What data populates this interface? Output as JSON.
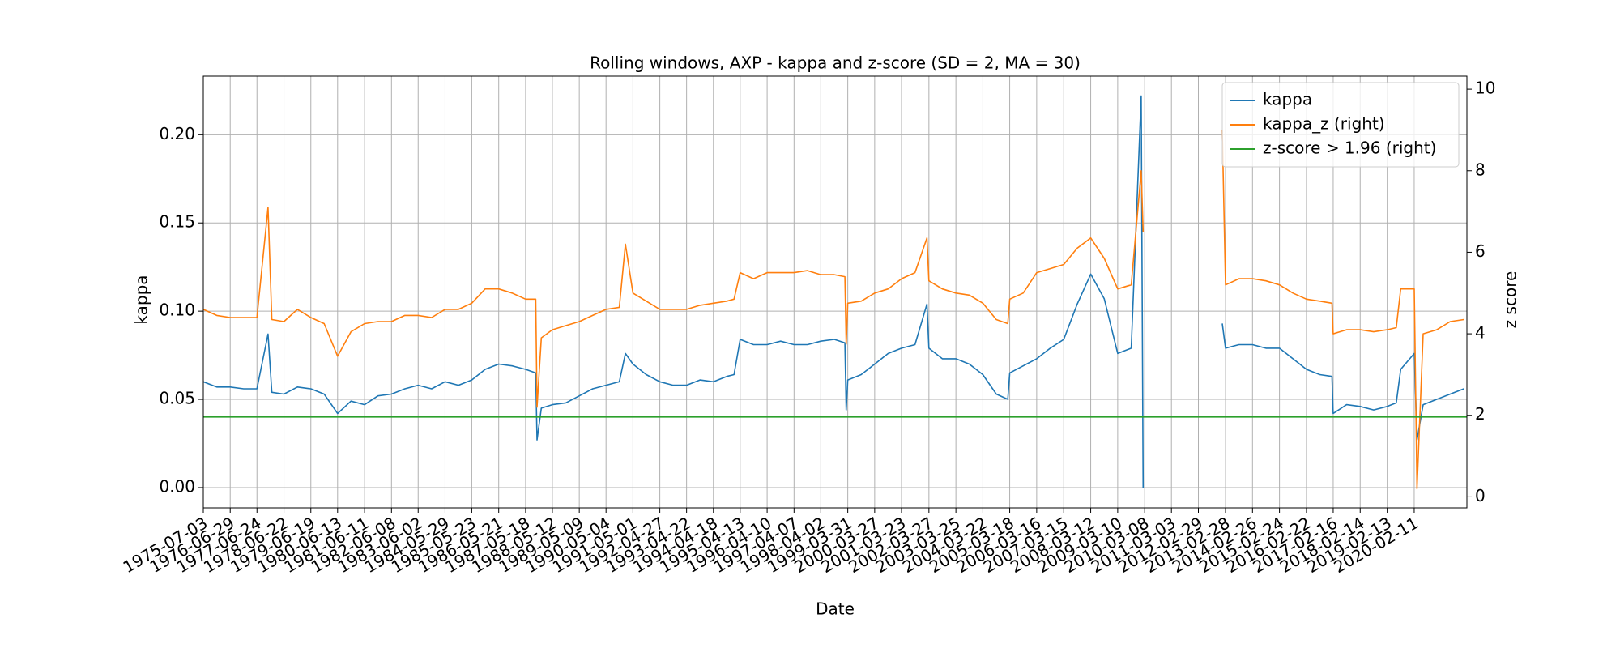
{
  "chart_data": {
    "type": "line",
    "title": "Rolling windows, AXP - kappa and z-score (SD = 2, MA = 30)",
    "xlabel": "Date",
    "ylabel": "kappa",
    "y2label": "z score",
    "grid": true,
    "legend": "upper right",
    "x": [
      "1975-07-03",
      "1975-12-31",
      "1976-06-29",
      "1976-12-27",
      "1977-06-24",
      "1977-11-20",
      "1978-01-10",
      "1978-06-22",
      "1978-12-20",
      "1979-06-19",
      "1979-12-15",
      "1980-06-13",
      "1980-12-10",
      "1981-06-11",
      "1981-12-08",
      "1982-06-08",
      "1982-12-05",
      "1983-06-02",
      "1983-11-30",
      "1984-05-29",
      "1984-11-25",
      "1985-05-23",
      "1985-11-20",
      "1986-05-21",
      "1986-11-18",
      "1987-05-18",
      "1987-10-01",
      "1987-10-19",
      "1987-12-15",
      "1988-05-12",
      "1988-11-08",
      "1989-05-09",
      "1989-11-05",
      "1990-05-04",
      "1990-10-30",
      "1991-01-20",
      "1991-05-01",
      "1991-10-28",
      "1992-04-27",
      "1992-10-24",
      "1993-04-22",
      "1993-10-20",
      "1994-04-18",
      "1994-10-15",
      "1995-01-20",
      "1995-04-13",
      "1995-10-10",
      "1996-04-10",
      "1996-10-08",
      "1997-04-07",
      "1997-10-05",
      "1998-04-02",
      "1998-10-01",
      "1999-02-20",
      "1999-03-10",
      "1999-03-31",
      "1999-09-28",
      "2000-03-27",
      "2000-09-24",
      "2001-03-23",
      "2001-09-20",
      "2002-03-01",
      "2002-03-27",
      "2002-09-24",
      "2003-03-25",
      "2003-09-22",
      "2004-03-22",
      "2004-09-19",
      "2005-02-20",
      "2005-03-18",
      "2005-09-15",
      "2006-03-16",
      "2006-09-14",
      "2007-03-15",
      "2007-09-12",
      "2008-03-12",
      "2008-09-10",
      "2009-03-10",
      "2009-09-08",
      "2010-01-20",
      "2010-02-15",
      "2011-09-01",
      "2013-01-15",
      "2013-02-28",
      "2013-08-28",
      "2014-02-26",
      "2014-08-26",
      "2015-02-24",
      "2015-08-24",
      "2016-02-22",
      "2016-08-20",
      "2017-01-30",
      "2017-02-16",
      "2017-08-15",
      "2018-02-14",
      "2018-08-14",
      "2019-02-13",
      "2019-06-15",
      "2019-08-13",
      "2020-02-11",
      "2020-03-20",
      "2020-06-10",
      "2020-12-10",
      "2021-06-10",
      "2021-12-10"
    ],
    "series": [
      {
        "name": "kappa",
        "color": "#1f77b4",
        "values": [
          0.06,
          0.057,
          0.057,
          0.056,
          0.056,
          0.087,
          0.054,
          0.053,
          0.057,
          0.056,
          0.053,
          0.042,
          0.049,
          0.047,
          0.052,
          0.053,
          0.056,
          0.058,
          0.056,
          0.06,
          0.058,
          0.061,
          0.067,
          0.07,
          0.069,
          0.067,
          0.065,
          0.027,
          0.045,
          0.047,
          0.048,
          0.052,
          0.056,
          0.058,
          0.06,
          0.076,
          0.07,
          0.064,
          0.06,
          0.058,
          0.058,
          0.061,
          0.06,
          0.063,
          0.064,
          0.084,
          0.081,
          0.081,
          0.083,
          0.081,
          0.081,
          0.083,
          0.084,
          0.082,
          0.044,
          0.061,
          0.064,
          0.07,
          0.076,
          0.079,
          0.081,
          0.104,
          0.079,
          0.073,
          0.073,
          0.07,
          0.064,
          0.053,
          0.05,
          0.065,
          0.069,
          0.073,
          0.079,
          0.084,
          0.104,
          0.121,
          0.107,
          0.076,
          0.079,
          0.222,
          0.0,
          null,
          0.093,
          0.079,
          0.081,
          0.081,
          0.079,
          0.079,
          0.073,
          0.067,
          0.064,
          0.063,
          0.042,
          0.047,
          0.046,
          0.044,
          0.046,
          0.048,
          0.067,
          0.076,
          0.027,
          0.047,
          0.05,
          0.053,
          0.056
        ]
      },
      {
        "name": "kappa_z (right)",
        "color": "#ff7f0e",
        "axis": "y2",
        "values": [
          4.6,
          4.45,
          4.4,
          4.4,
          4.4,
          7.1,
          4.35,
          4.3,
          4.6,
          4.4,
          4.25,
          3.45,
          4.05,
          4.25,
          4.3,
          4.3,
          4.45,
          4.45,
          4.4,
          4.6,
          4.6,
          4.75,
          5.1,
          5.1,
          5.0,
          4.85,
          4.85,
          2.2,
          3.9,
          4.1,
          4.2,
          4.3,
          4.45,
          4.6,
          4.65,
          6.2,
          5.0,
          4.8,
          4.6,
          4.6,
          4.6,
          4.7,
          4.75,
          4.8,
          4.85,
          5.5,
          5.35,
          5.5,
          5.5,
          5.5,
          5.55,
          5.45,
          5.45,
          5.4,
          3.75,
          4.75,
          4.8,
          5.0,
          5.1,
          5.35,
          5.5,
          6.35,
          5.3,
          5.1,
          5.0,
          4.95,
          4.75,
          4.35,
          4.25,
          4.85,
          5.0,
          5.5,
          5.6,
          5.7,
          6.1,
          6.35,
          5.85,
          5.1,
          5.2,
          8.0,
          6.5,
          null,
          9.0,
          5.2,
          5.35,
          5.35,
          5.3,
          5.2,
          5.0,
          4.85,
          4.8,
          4.75,
          4.0,
          4.1,
          4.1,
          4.05,
          4.1,
          4.15,
          5.1,
          5.1,
          0.2,
          4.0,
          4.1,
          4.3,
          4.35
        ]
      },
      {
        "name": "z-score > 1.96 (right)",
        "color": "#2ca02c",
        "axis": "y2",
        "x": [
          "1975-07-03",
          "2022-01-20"
        ],
        "values": [
          1.96,
          1.96
        ]
      }
    ],
    "xlim": [
      "1975-07-03",
      "2022-01-20"
    ],
    "xticks": [
      "1975-07-03",
      "1976-06-29",
      "1977-06-24",
      "1978-06-22",
      "1979-06-19",
      "1980-06-13",
      "1981-06-11",
      "1982-06-08",
      "1983-06-02",
      "1984-05-29",
      "1985-05-23",
      "1986-05-21",
      "1987-05-18",
      "1988-05-12",
      "1989-05-09",
      "1990-05-04",
      "1991-05-01",
      "1992-04-27",
      "1993-04-22",
      "1994-04-18",
      "1995-04-13",
      "1996-04-10",
      "1997-04-07",
      "1998-04-02",
      "1999-03-31",
      "2000-03-27",
      "2001-03-23",
      "2002-03-27",
      "2003-03-25",
      "2004-03-22",
      "2005-03-18",
      "2006-03-16",
      "2007-03-15",
      "2008-03-12",
      "2009-03-10",
      "2010-03-08",
      "2011-03-03",
      "2012-02-29",
      "2013-02-28",
      "2014-02-26",
      "2015-02-24",
      "2016-02-22",
      "2017-02-16",
      "2018-02-14",
      "2019-02-13",
      "2020-02-11"
    ],
    "ylim": [
      -0.0115,
      0.2332
    ],
    "yticks": [
      {
        "value": 0,
        "label": "0.00"
      },
      {
        "value": 0.05,
        "label": "0.05"
      },
      {
        "value": 0.1,
        "label": "0.10"
      },
      {
        "value": 0.15,
        "label": "0.15"
      },
      {
        "value": 0.2,
        "label": "0.20"
      }
    ],
    "y2lim": [
      -0.27,
      10.32
    ],
    "y2ticks": [
      0,
      2,
      4,
      6,
      8,
      10
    ]
  }
}
